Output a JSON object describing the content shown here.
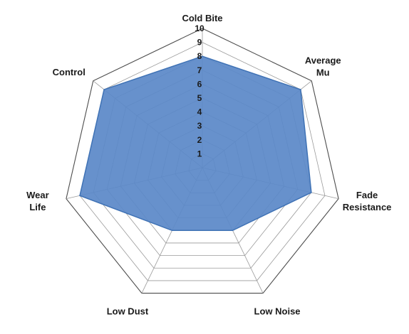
{
  "chart_data": {
    "type": "radar",
    "title": "",
    "axes": [
      "Cold Bite",
      "Average Mu",
      "Fade Resistance",
      "Low Noise",
      "Low Dust",
      "Wear Life",
      "Control"
    ],
    "axis_label_lines": [
      [
        "Cold Bite"
      ],
      [
        "Average",
        "Mu"
      ],
      [
        "Fade",
        "Resistance"
      ],
      [
        "Low Noise"
      ],
      [
        "Low Dust"
      ],
      [
        "Wear",
        "Life"
      ],
      [
        "Control"
      ]
    ],
    "rlim": [
      0,
      10
    ],
    "ticks": [
      "1",
      "2",
      "3",
      "4",
      "5",
      "6",
      "7",
      "8",
      "9",
      "10"
    ],
    "grid": true,
    "series": [
      {
        "values": [
          8,
          9,
          8,
          5,
          5,
          9,
          9
        ]
      }
    ],
    "colors": {
      "fill": "#5b89c8",
      "stroke": "#3f72b5",
      "outer_grid": "#4d4d4d",
      "inner_grid": "#9a9a9a",
      "text": "#1a1a1a"
    }
  }
}
